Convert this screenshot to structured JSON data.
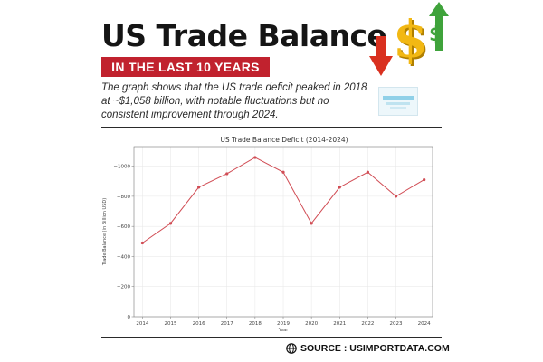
{
  "header": {
    "title": "US Trade Balance",
    "subtitle": "IN THE LAST 10 YEARS",
    "summary": "The graph shows that the US trade deficit peaked in 2018 at ~$1,058 billion, with notable fluctuations but no consistent improvement through 2024."
  },
  "decor": {
    "dollar_big": "$",
    "dollar_small": "$",
    "icons": [
      "down-arrow-icon",
      "dollar-icon",
      "up-arrow-icon",
      "logo"
    ],
    "colors": {
      "gold": "#f2b813",
      "red_arrow": "#d9301f",
      "green_arrow": "#3fa33b",
      "banner": "#c1222e"
    }
  },
  "chart_data": {
    "type": "line",
    "title": "US Trade Balance Deficit (2014-2024)",
    "xlabel": "Year",
    "ylabel": "Trade Balance (in Billion USD)",
    "x": [
      2014,
      2015,
      2016,
      2017,
      2018,
      2019,
      2020,
      2021,
      2022,
      2023,
      2024
    ],
    "y": [
      -490,
      -620,
      -860,
      -950,
      -1058,
      -960,
      -620,
      -860,
      -960,
      -800,
      -910
    ],
    "xticks": [
      "2014",
      "2015",
      "2016",
      "2017",
      "2018",
      "2019",
      "2020",
      "2021",
      "2022",
      "2023",
      "2024"
    ],
    "yticks": [
      {
        "value": 0,
        "label": "0"
      },
      {
        "value": -200,
        "label": "−200"
      },
      {
        "value": -400,
        "label": "−400"
      },
      {
        "value": -600,
        "label": "−600"
      },
      {
        "value": -800,
        "label": "−800"
      },
      {
        "value": -1000,
        "label": "−1000"
      }
    ],
    "ylim": [
      0,
      -1130
    ],
    "y_inverted": true,
    "grid": true,
    "line_color": "#d14d55"
  },
  "footer": {
    "source": "SOURCE : USIMPORTDATA.COM",
    "icon": "globe-icon"
  }
}
